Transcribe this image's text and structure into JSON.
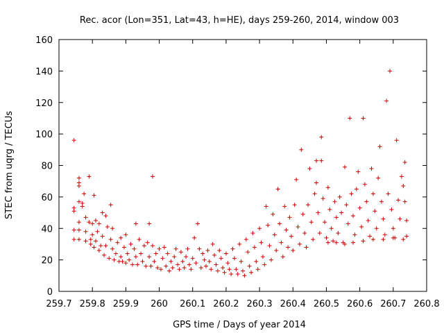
{
  "chart_data": {
    "type": "scatter",
    "title": "Rec. acor (Lon=351, Lat=43, h=HE), days 259-260, 2014, window 003",
    "xlabel": "GPS time / Days of year 2014",
    "ylabel": "STEC from uqrg / TECUs",
    "xlim": [
      259.7,
      260.8
    ],
    "ylim": [
      0,
      160
    ],
    "xticks": [
      "259.7",
      "259.8",
      "259.9",
      "260",
      "260.1",
      "260.2",
      "260.3",
      "260.4",
      "260.5",
      "260.6",
      "260.7",
      "260.8"
    ],
    "yticks": [
      "0",
      "20",
      "40",
      "60",
      "80",
      "100",
      "120",
      "140",
      "160"
    ],
    "grid": false,
    "legend": "none",
    "marker": "plus",
    "color": "#cc0000",
    "series": [
      {
        "points": [
          [
            259.745,
            96
          ],
          [
            259.745,
            53
          ],
          [
            259.745,
            51
          ],
          [
            259.745,
            39
          ],
          [
            259.745,
            33
          ],
          [
            259.76,
            72
          ],
          [
            259.76,
            69
          ],
          [
            259.76,
            67
          ],
          [
            259.76,
            57
          ],
          [
            259.76,
            44
          ],
          [
            259.76,
            39
          ],
          [
            259.76,
            33
          ],
          [
            259.77,
            56
          ],
          [
            259.77,
            54
          ],
          [
            259.775,
            62
          ],
          [
            259.78,
            47
          ],
          [
            259.78,
            38
          ],
          [
            259.78,
            32
          ],
          [
            259.79,
            73
          ],
          [
            259.79,
            44
          ],
          [
            259.795,
            33
          ],
          [
            259.795,
            30
          ],
          [
            259.8,
            43
          ],
          [
            259.8,
            36
          ],
          [
            259.805,
            61
          ],
          [
            259.805,
            28
          ],
          [
            259.81,
            45
          ],
          [
            259.81,
            32
          ],
          [
            259.815,
            38
          ],
          [
            259.82,
            43
          ],
          [
            259.82,
            26
          ],
          [
            259.825,
            29
          ],
          [
            259.83,
            50
          ],
          [
            259.83,
            35
          ],
          [
            259.835,
            23
          ],
          [
            259.84,
            48
          ],
          [
            259.84,
            29
          ],
          [
            259.845,
            41
          ],
          [
            259.85,
            21
          ],
          [
            259.855,
            55
          ],
          [
            259.855,
            33
          ],
          [
            259.86,
            40
          ],
          [
            259.86,
            27
          ],
          [
            259.865,
            20
          ],
          [
            259.87,
            24
          ],
          [
            259.875,
            31
          ],
          [
            259.88,
            19
          ],
          [
            259.885,
            34
          ],
          [
            259.885,
            22
          ],
          [
            259.89,
            19
          ],
          [
            259.895,
            28
          ],
          [
            259.9,
            36
          ],
          [
            259.9,
            18
          ],
          [
            259.905,
            24
          ],
          [
            259.91,
            20
          ],
          [
            259.915,
            30
          ],
          [
            259.92,
            17
          ],
          [
            259.925,
            27
          ],
          [
            259.93,
            43
          ],
          [
            259.93,
            22
          ],
          [
            259.935,
            17
          ],
          [
            259.94,
            33
          ],
          [
            259.945,
            24
          ],
          [
            259.95,
            19
          ],
          [
            259.955,
            29
          ],
          [
            259.96,
            16
          ],
          [
            259.965,
            31
          ],
          [
            259.97,
            43
          ],
          [
            259.97,
            22
          ],
          [
            259.975,
            16
          ],
          [
            259.98,
            73
          ],
          [
            259.98,
            29
          ],
          [
            259.985,
            19
          ],
          [
            259.99,
            24
          ],
          [
            259.995,
            15
          ],
          [
            260.0,
            27
          ],
          [
            260.005,
            14
          ],
          [
            260.01,
            21
          ],
          [
            260.015,
            28
          ],
          [
            260.02,
            16
          ],
          [
            260.025,
            24
          ],
          [
            260.03,
            13
          ],
          [
            260.035,
            19
          ],
          [
            260.04,
            15
          ],
          [
            260.045,
            22
          ],
          [
            260.05,
            27
          ],
          [
            260.055,
            17
          ],
          [
            260.06,
            14
          ],
          [
            260.065,
            25
          ],
          [
            260.07,
            19
          ],
          [
            260.075,
            15
          ],
          [
            260.08,
            22
          ],
          [
            260.085,
            27
          ],
          [
            260.09,
            17
          ],
          [
            260.095,
            14
          ],
          [
            260.1,
            21
          ],
          [
            260.105,
            34
          ],
          [
            260.11,
            18
          ],
          [
            260.115,
            43
          ],
          [
            260.12,
            27
          ],
          [
            260.125,
            15
          ],
          [
            260.13,
            24
          ],
          [
            260.135,
            20
          ],
          [
            260.14,
            16
          ],
          [
            260.145,
            26
          ],
          [
            260.15,
            19
          ],
          [
            260.155,
            14
          ],
          [
            260.16,
            30
          ],
          [
            260.165,
            23
          ],
          [
            260.17,
            17
          ],
          [
            260.175,
            13
          ],
          [
            260.18,
            26
          ],
          [
            260.185,
            21
          ],
          [
            260.19,
            15
          ],
          [
            260.195,
            12
          ],
          [
            260.2,
            24
          ],
          [
            260.205,
            18
          ],
          [
            260.21,
            14
          ],
          [
            260.215,
            11
          ],
          [
            260.22,
            27
          ],
          [
            260.225,
            21
          ],
          [
            260.23,
            14
          ],
          [
            260.235,
            11
          ],
          [
            260.24,
            30
          ],
          [
            260.245,
            19
          ],
          [
            260.25,
            13
          ],
          [
            260.255,
            10
          ],
          [
            260.26,
            33
          ],
          [
            260.265,
            25
          ],
          [
            260.27,
            16
          ],
          [
            260.275,
            12
          ],
          [
            260.28,
            37
          ],
          [
            260.285,
            28
          ],
          [
            260.29,
            19
          ],
          [
            260.295,
            14
          ],
          [
            260.3,
            40
          ],
          [
            260.305,
            31
          ],
          [
            260.31,
            22
          ],
          [
            260.315,
            17
          ],
          [
            260.32,
            54
          ],
          [
            260.325,
            42
          ],
          [
            260.33,
            29
          ],
          [
            260.335,
            20
          ],
          [
            260.34,
            49
          ],
          [
            260.345,
            36
          ],
          [
            260.35,
            26
          ],
          [
            260.355,
            65
          ],
          [
            260.36,
            43
          ],
          [
            260.365,
            31
          ],
          [
            260.37,
            22
          ],
          [
            260.375,
            54
          ],
          [
            260.38,
            39
          ],
          [
            260.385,
            28
          ],
          [
            260.39,
            47
          ],
          [
            260.395,
            35
          ],
          [
            260.4,
            26
          ],
          [
            260.405,
            55
          ],
          [
            260.41,
            71
          ],
          [
            260.415,
            41
          ],
          [
            260.42,
            30
          ],
          [
            260.425,
            90
          ],
          [
            260.43,
            49
          ],
          [
            260.435,
            37
          ],
          [
            260.44,
            28
          ],
          [
            260.445,
            55
          ],
          [
            260.45,
            78
          ],
          [
            260.455,
            44
          ],
          [
            260.46,
            33
          ],
          [
            260.465,
            62
          ],
          [
            260.47,
            69
          ],
          [
            260.47,
            83
          ],
          [
            260.475,
            50
          ],
          [
            260.48,
            37
          ],
          [
            260.485,
            98
          ],
          [
            260.485,
            83
          ],
          [
            260.49,
            59
          ],
          [
            260.495,
            44
          ],
          [
            260.5,
            34
          ],
          [
            260.505,
            66
          ],
          [
            260.51,
            52
          ],
          [
            260.515,
            40
          ],
          [
            260.52,
            32
          ],
          [
            260.525,
            57
          ],
          [
            260.53,
            47
          ],
          [
            260.535,
            37
          ],
          [
            260.54,
            60
          ],
          [
            260.545,
            50
          ],
          [
            260.55,
            31
          ],
          [
            260.555,
            79
          ],
          [
            260.56,
            55
          ],
          [
            260.565,
            43
          ],
          [
            260.57,
            110
          ],
          [
            260.575,
            62
          ],
          [
            260.58,
            48
          ],
          [
            260.585,
            36
          ],
          [
            260.59,
            65
          ],
          [
            260.595,
            76
          ],
          [
            260.6,
            53
          ],
          [
            260.605,
            41
          ],
          [
            260.61,
            110
          ],
          [
            260.615,
            68
          ],
          [
            260.62,
            57
          ],
          [
            260.625,
            45
          ],
          [
            260.63,
            35
          ],
          [
            260.635,
            78
          ],
          [
            260.64,
            62
          ],
          [
            260.645,
            51
          ],
          [
            260.65,
            40
          ],
          [
            260.655,
            72
          ],
          [
            260.66,
            92
          ],
          [
            260.665,
            57
          ],
          [
            260.67,
            46
          ],
          [
            260.675,
            36
          ],
          [
            260.68,
            121
          ],
          [
            260.685,
            62
          ],
          [
            260.69,
            140
          ],
          [
            260.695,
            52
          ],
          [
            260.7,
            40
          ],
          [
            260.705,
            34
          ],
          [
            260.71,
            96
          ],
          [
            260.715,
            58
          ],
          [
            260.72,
            46
          ],
          [
            260.725,
            73
          ],
          [
            260.73,
            67
          ],
          [
            260.735,
            82
          ],
          [
            260.735,
            57
          ],
          [
            260.74,
            45
          ],
          [
            260.74,
            35
          ],
          [
            260.505,
            31
          ],
          [
            260.53,
            31
          ],
          [
            260.555,
            30
          ],
          [
            260.58,
            31
          ],
          [
            260.61,
            32
          ],
          [
            260.64,
            33
          ],
          [
            260.67,
            33
          ],
          [
            260.7,
            34
          ],
          [
            260.73,
            33
          ]
        ]
      }
    ]
  }
}
